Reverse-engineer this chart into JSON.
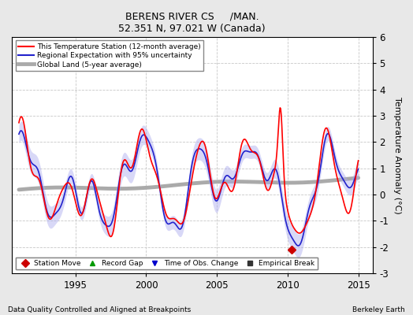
{
  "title": "BERENS RIVER CS     /MAN.",
  "subtitle": "52.351 N, 97.021 W (Canada)",
  "xlabel_left": "Data Quality Controlled and Aligned at Breakpoints",
  "xlabel_right": "Berkeley Earth",
  "ylabel": "Temperature Anomaly (°C)",
  "xlim": [
    1990.5,
    2016.0
  ],
  "ylim": [
    -3,
    6
  ],
  "yticks": [
    -3,
    -2,
    -1,
    0,
    1,
    2,
    3,
    4,
    5,
    6
  ],
  "xticks": [
    1995,
    2000,
    2005,
    2010,
    2015
  ],
  "bg_color": "#e8e8e8",
  "plot_bg_color": "#ffffff",
  "grid_color": "#c8c8c8",
  "legend_items": [
    {
      "label": "This Temperature Station (12-month average)",
      "color": "#ff0000",
      "lw": 1.5
    },
    {
      "label": "Regional Expectation with 95% uncertainty",
      "color": "#3333cc",
      "lw": 1.5
    },
    {
      "label": "Global Land (5-year average)",
      "color": "#aaaaaa",
      "lw": 3
    }
  ],
  "marker_legend": [
    {
      "label": "Station Move",
      "marker": "D",
      "color": "#cc0000"
    },
    {
      "label": "Record Gap",
      "marker": "^",
      "color": "#009900"
    },
    {
      "label": "Time of Obs. Change",
      "marker": "v",
      "color": "#0000cc"
    },
    {
      "label": "Empirical Break",
      "marker": "s",
      "color": "#333333"
    }
  ],
  "station_move_x": 2010.3,
  "station_move_y": -2.1,
  "figsize": [
    5.24,
    4.0
  ],
  "dpi": 100
}
